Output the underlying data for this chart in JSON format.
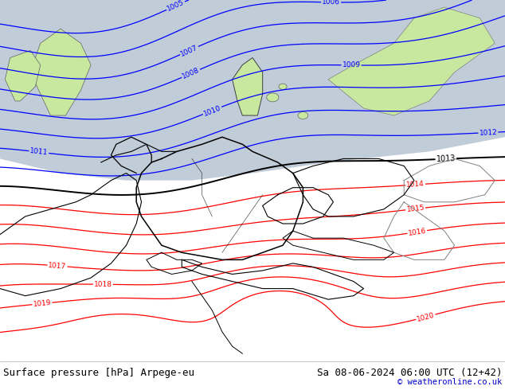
{
  "title_left": "Surface pressure [hPa] Arpege-eu",
  "title_right": "Sa 08-06-2024 06:00 UTC (12+42)",
  "copyright": "© weatheronline.co.uk",
  "bg_land_color": "#c8e8a0",
  "bg_sea_color": "#c0ccd8",
  "fig_width": 6.34,
  "fig_height": 4.9,
  "dpi": 100,
  "title_fontsize": 9.0,
  "copyright_fontsize": 7.5,
  "copyright_color": "#0000cc",
  "blue_levels": [
    1005,
    1006,
    1007,
    1008,
    1009,
    1010,
    1011,
    1012
  ],
  "black_levels": [
    1013
  ],
  "red_levels": [
    1014,
    1015,
    1016,
    1017,
    1018,
    1019,
    1020
  ]
}
